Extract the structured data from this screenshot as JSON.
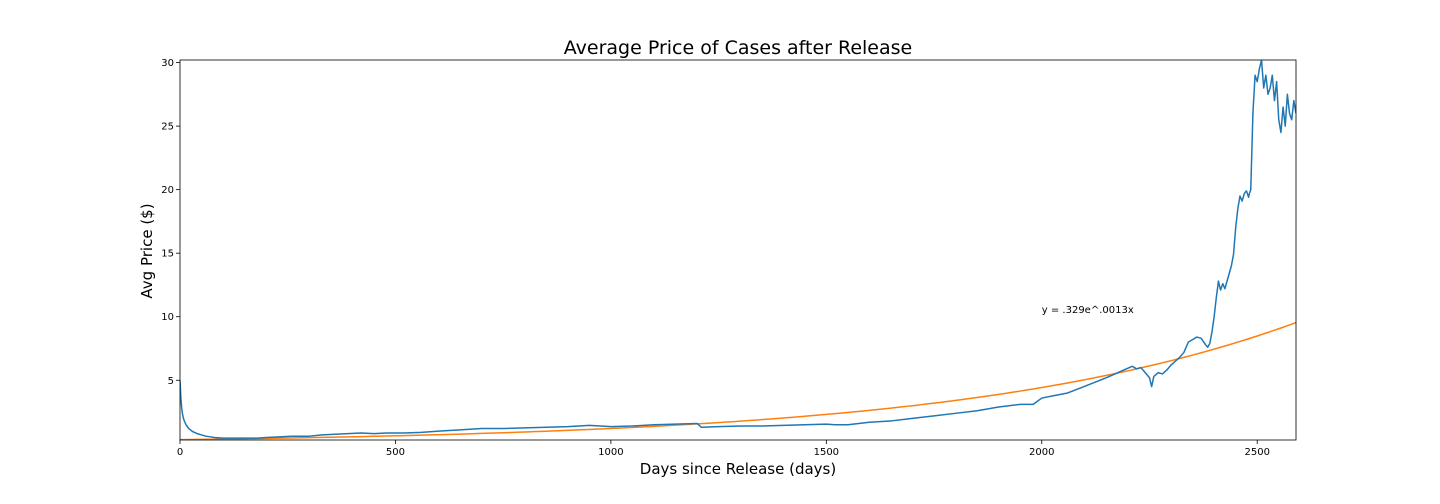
{
  "chart_data": {
    "type": "line",
    "title": "Average Price of Cases after Release",
    "xlabel": "Days since Release (days)",
    "ylabel": "Avg Price ($)",
    "xlim": [
      0,
      2590
    ],
    "ylim": [
      0.3,
      30.2
    ],
    "x_ticks": [
      0,
      500,
      1000,
      1500,
      2000,
      2500
    ],
    "y_ticks": [
      5,
      10,
      15,
      20,
      25,
      30
    ],
    "grid": false,
    "annotation": {
      "text": "y = .329e^.0013x",
      "x": 2000,
      "y": 10.3
    },
    "colors": {
      "price": "#1f77b4",
      "fit": "#ff7f0e"
    },
    "series": [
      {
        "kind": "price",
        "x": [
          0,
          2,
          4,
          6,
          8,
          10,
          14,
          18,
          22,
          26,
          30,
          40,
          50,
          60,
          70,
          80,
          100,
          120,
          150,
          180,
          200,
          230,
          260,
          300,
          330,
          360,
          390,
          420,
          450,
          480,
          520,
          560,
          600,
          650,
          700,
          750,
          800,
          850,
          900,
          950,
          1000,
          1050,
          1100,
          1150,
          1200,
          1210,
          1250,
          1300,
          1350,
          1400,
          1450,
          1500,
          1520,
          1550,
          1600,
          1650,
          1700,
          1750,
          1800,
          1850,
          1900,
          1950,
          1980,
          2000,
          2030,
          2060,
          2090,
          2120,
          2150,
          2170,
          2190,
          2210,
          2220,
          2230,
          2240,
          2250,
          2255,
          2260,
          2270,
          2280,
          2290,
          2300,
          2310,
          2320,
          2330,
          2340,
          2350,
          2360,
          2370,
          2380,
          2385,
          2390,
          2395,
          2400,
          2405,
          2410,
          2415,
          2420,
          2425,
          2430,
          2440,
          2445,
          2450,
          2455,
          2460,
          2465,
          2470,
          2475,
          2480,
          2482,
          2485,
          2490,
          2495,
          2500,
          2505,
          2510,
          2515,
          2520,
          2525,
          2530,
          2535,
          2540,
          2545,
          2550,
          2555,
          2560,
          2565,
          2570,
          2575,
          2580,
          2585,
          2590
        ],
        "y": [
          5.0,
          3.6,
          2.8,
          2.3,
          2.0,
          1.8,
          1.5,
          1.3,
          1.15,
          1.05,
          0.95,
          0.8,
          0.7,
          0.6,
          0.55,
          0.5,
          0.45,
          0.45,
          0.45,
          0.45,
          0.5,
          0.55,
          0.6,
          0.6,
          0.7,
          0.75,
          0.8,
          0.85,
          0.8,
          0.85,
          0.85,
          0.9,
          1.0,
          1.1,
          1.2,
          1.2,
          1.25,
          1.3,
          1.35,
          1.45,
          1.35,
          1.4,
          1.5,
          1.55,
          1.6,
          1.3,
          1.35,
          1.4,
          1.4,
          1.45,
          1.5,
          1.55,
          1.5,
          1.5,
          1.7,
          1.8,
          2.0,
          2.2,
          2.4,
          2.6,
          2.9,
          3.1,
          3.1,
          3.6,
          3.8,
          4.0,
          4.4,
          4.8,
          5.2,
          5.5,
          5.8,
          6.1,
          5.9,
          6.0,
          5.6,
          5.2,
          4.5,
          5.3,
          5.6,
          5.5,
          5.8,
          6.2,
          6.5,
          6.8,
          7.2,
          8.0,
          8.2,
          8.4,
          8.3,
          7.8,
          7.6,
          7.9,
          8.8,
          10.0,
          11.5,
          12.8,
          12.1,
          12.6,
          12.2,
          12.8,
          14.0,
          14.9,
          17.0,
          18.5,
          19.5,
          19.1,
          19.7,
          19.9,
          19.4,
          19.7,
          20.0,
          26.0,
          29.0,
          28.5,
          29.5,
          30.2,
          28.0,
          29.0,
          27.5,
          28.0,
          29.0,
          27.0,
          28.5,
          25.5,
          24.5,
          26.5,
          25.0,
          27.5,
          26.0,
          25.5,
          27.0,
          26.0
        ]
      },
      {
        "kind": "fit",
        "equation": "y = .329e^.0013x",
        "a": 0.329,
        "b": 0.0013
      }
    ]
  }
}
